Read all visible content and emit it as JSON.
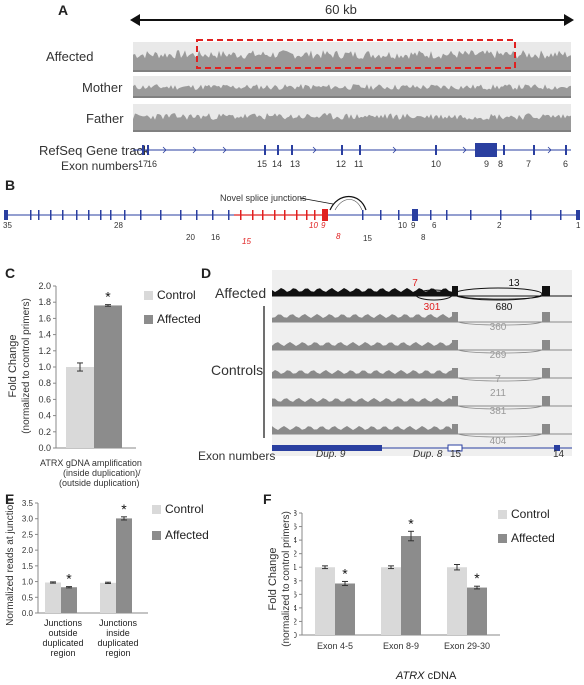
{
  "panelA": {
    "letter": "A",
    "scale": "60 kb",
    "tracks": [
      "Affected",
      "Mother",
      "Father"
    ],
    "gene_track_label": "RefSeq Gene track",
    "exon_label": "Exon numbers",
    "exon_numbers": [
      "17",
      "16",
      "15",
      "14",
      "13",
      "12",
      "11",
      "10",
      "9",
      "8",
      "7",
      "6"
    ],
    "colors": {
      "coverage": "#9a9a9a",
      "highlight": "#e02020",
      "gene": "#2a3fa0"
    }
  },
  "panelB": {
    "letter": "B",
    "annotation": "Novel splice junctions",
    "exon_labels": [
      "35",
      "28",
      "20",
      "16",
      "15",
      "10",
      "9",
      "8",
      "15",
      "10",
      "9",
      "8",
      "6",
      "2",
      "1"
    ],
    "colors": {
      "normal": "#2a3fa0",
      "duplicated": "#e02020"
    }
  },
  "panelC": {
    "letter": "C",
    "ylabel_line1": "Fold Change",
    "ylabel_line2": "(normalized to control primers)",
    "xlabel_line1": "ATRX gDNA amplification",
    "xlabel_line2": "(inside duplication)/",
    "xlabel_line3": "(outside duplication)",
    "significance": "*",
    "yticks": [
      "0.0",
      "0.2",
      "0.4",
      "0.6",
      "0.8",
      "1.0",
      "1.2",
      "1.4",
      "1.6",
      "1.8",
      "2.0"
    ]
  },
  "panelD": {
    "letter": "D",
    "affected_label": "Affected",
    "controls_label": "Controls",
    "exon_label": "Exon numbers",
    "exon_names": [
      "Dup. 9",
      "Dup. 8",
      "15",
      "14"
    ],
    "affected_counts": [
      "7",
      "13",
      "301",
      "680"
    ],
    "control_counts": [
      "360",
      "269",
      "7",
      "211",
      "381",
      "404"
    ]
  },
  "panelE": {
    "letter": "E",
    "ylabel": "Normalized reads at junctions",
    "yticks": [
      "0.0",
      "0.5",
      "1.0",
      "1.5",
      "2.0",
      "2.5",
      "3.0",
      "3.5"
    ],
    "categories_line1": [
      "Junctions",
      "Junctions"
    ],
    "categories_line2": [
      "outside",
      "inside"
    ],
    "categories_line3": [
      "duplicated",
      "duplicated"
    ],
    "categories_line4": [
      "region",
      "region"
    ],
    "significance": "*"
  },
  "panelF": {
    "letter": "F",
    "ylabel_line1": "Fold Change",
    "ylabel_line2": "(normalized to control primers)",
    "yticks": [
      "0",
      "0.2",
      "0.4",
      "0.6",
      "0.8",
      "1",
      "1.2",
      "1.4",
      "1.6",
      "1.8"
    ],
    "xlabel_italic": "ATRX",
    "xlabel_rest": " cDNA",
    "significance": "*"
  },
  "legend": {
    "control": "Control",
    "affected": "Affected"
  },
  "chart_data": [
    {
      "type": "bar",
      "panel": "C",
      "categories": [
        "ATRX gDNA amplification (inside duplication)/(outside duplication)"
      ],
      "series": [
        {
          "name": "Control",
          "values": [
            1.0
          ],
          "error": [
            0.05
          ],
          "color": "#d9d9d9"
        },
        {
          "name": "Affected",
          "values": [
            1.76
          ],
          "error": [
            0.01
          ],
          "color": "#8c8c8c"
        }
      ],
      "ylim": [
        0,
        2.0
      ],
      "ylabel": "Fold Change (normalized to control primers)"
    },
    {
      "type": "bar",
      "panel": "E",
      "categories": [
        "Junctions outside duplicated region",
        "Junctions inside duplicated region"
      ],
      "series": [
        {
          "name": "Control",
          "values": [
            0.97,
            0.96
          ],
          "error": [
            0.02,
            0.02
          ],
          "color": "#d9d9d9"
        },
        {
          "name": "Affected",
          "values": [
            0.82,
            3.01
          ],
          "error": [
            0.02,
            0.05
          ],
          "color": "#8c8c8c"
        }
      ],
      "ylim": [
        0,
        3.5
      ],
      "ylabel": "Normalized reads at junctions"
    },
    {
      "type": "bar",
      "panel": "F",
      "categories": [
        "Exon 4-5",
        "Exon 8-9",
        "Exon 29-30"
      ],
      "series": [
        {
          "name": "Control",
          "values": [
            1.0,
            1.0,
            1.0
          ],
          "error": [
            0.02,
            0.02,
            0.04
          ],
          "color": "#d9d9d9"
        },
        {
          "name": "Affected",
          "values": [
            0.76,
            1.46,
            0.7
          ],
          "error": [
            0.03,
            0.07,
            0.02
          ],
          "color": "#8c8c8c"
        }
      ],
      "ylim": [
        0,
        1.8
      ],
      "ylabel": "Fold Change (normalized to control primers)",
      "xlabel": "ATRX cDNA"
    }
  ]
}
